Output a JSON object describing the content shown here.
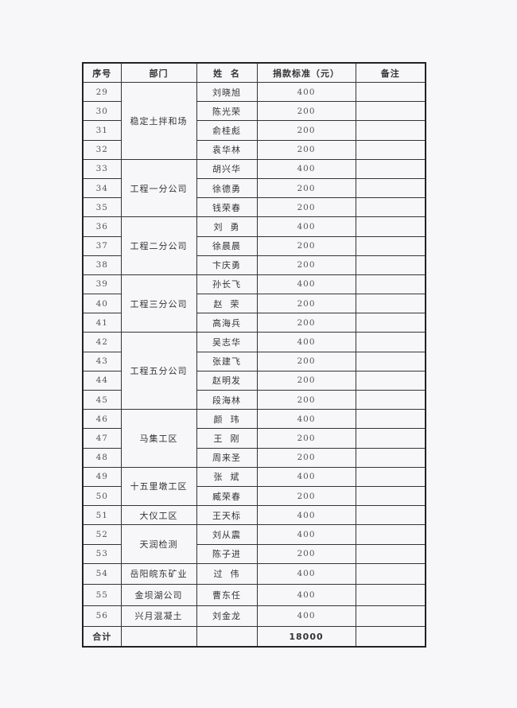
{
  "table": {
    "headers": [
      "序号",
      "部门",
      "姓  名",
      "捐款标准（元）",
      "备注"
    ],
    "departments": [
      {
        "name": "稳定土拌和场",
        "rows": [
          {
            "no": "29",
            "name": "刘晓旭",
            "amount": "400"
          },
          {
            "no": "30",
            "name": "陈光荣",
            "amount": "200"
          },
          {
            "no": "31",
            "name": "俞桂彪",
            "amount": "200"
          },
          {
            "no": "32",
            "name": "袁华林",
            "amount": "200"
          }
        ]
      },
      {
        "name": "工程一分公司",
        "rows": [
          {
            "no": "33",
            "name": "胡兴华",
            "amount": "400"
          },
          {
            "no": "34",
            "name": "徐德勇",
            "amount": "200"
          },
          {
            "no": "35",
            "name": "钱荣春",
            "amount": "200"
          }
        ]
      },
      {
        "name": "工程二分公司",
        "rows": [
          {
            "no": "36",
            "name": "刘  勇",
            "amount": "400"
          },
          {
            "no": "37",
            "name": "徐晨晨",
            "amount": "200"
          },
          {
            "no": "38",
            "name": "卞庆勇",
            "amount": "200"
          }
        ]
      },
      {
        "name": "工程三分公司",
        "rows": [
          {
            "no": "39",
            "name": "孙长飞",
            "amount": "400"
          },
          {
            "no": "40",
            "name": "赵  荣",
            "amount": "200"
          },
          {
            "no": "41",
            "name": "高海兵",
            "amount": "200"
          }
        ]
      },
      {
        "name": "工程五分公司",
        "rows": [
          {
            "no": "42",
            "name": "吴志华",
            "amount": "400"
          },
          {
            "no": "43",
            "name": "张建飞",
            "amount": "200"
          },
          {
            "no": "44",
            "name": "赵明发",
            "amount": "200"
          },
          {
            "no": "45",
            "name": "段海林",
            "amount": "200"
          }
        ]
      },
      {
        "name": "马集工区",
        "rows": [
          {
            "no": "46",
            "name": "颜  玮",
            "amount": "400"
          },
          {
            "no": "47",
            "name": "王  刚",
            "amount": "200"
          },
          {
            "no": "48",
            "name": "周来圣",
            "amount": "200"
          }
        ]
      },
      {
        "name": "十五里墩工区",
        "rows": [
          {
            "no": "49",
            "name": "张  斌",
            "amount": "400"
          },
          {
            "no": "50",
            "name": "臧荣春",
            "amount": "200"
          }
        ]
      },
      {
        "name": "大仪工区",
        "rows": [
          {
            "no": "51",
            "name": "王天标",
            "amount": "400"
          }
        ]
      },
      {
        "name": "天润检测",
        "rows": [
          {
            "no": "52",
            "name": "刘从震",
            "amount": "400"
          },
          {
            "no": "53",
            "name": "陈子进",
            "amount": "200"
          }
        ]
      },
      {
        "name": "岳阳皖东矿业",
        "rows": [
          {
            "no": "54",
            "name": "过  伟",
            "amount": "400"
          }
        ]
      },
      {
        "name": "金坝湖公司",
        "rows": [
          {
            "no": "55",
            "name": "曹东任",
            "amount": "400"
          }
        ]
      },
      {
        "name": "兴月混凝土",
        "rows": [
          {
            "no": "56",
            "name": "刘金龙",
            "amount": "400"
          }
        ]
      }
    ],
    "total_label": "合计",
    "total_amount": "18000"
  }
}
